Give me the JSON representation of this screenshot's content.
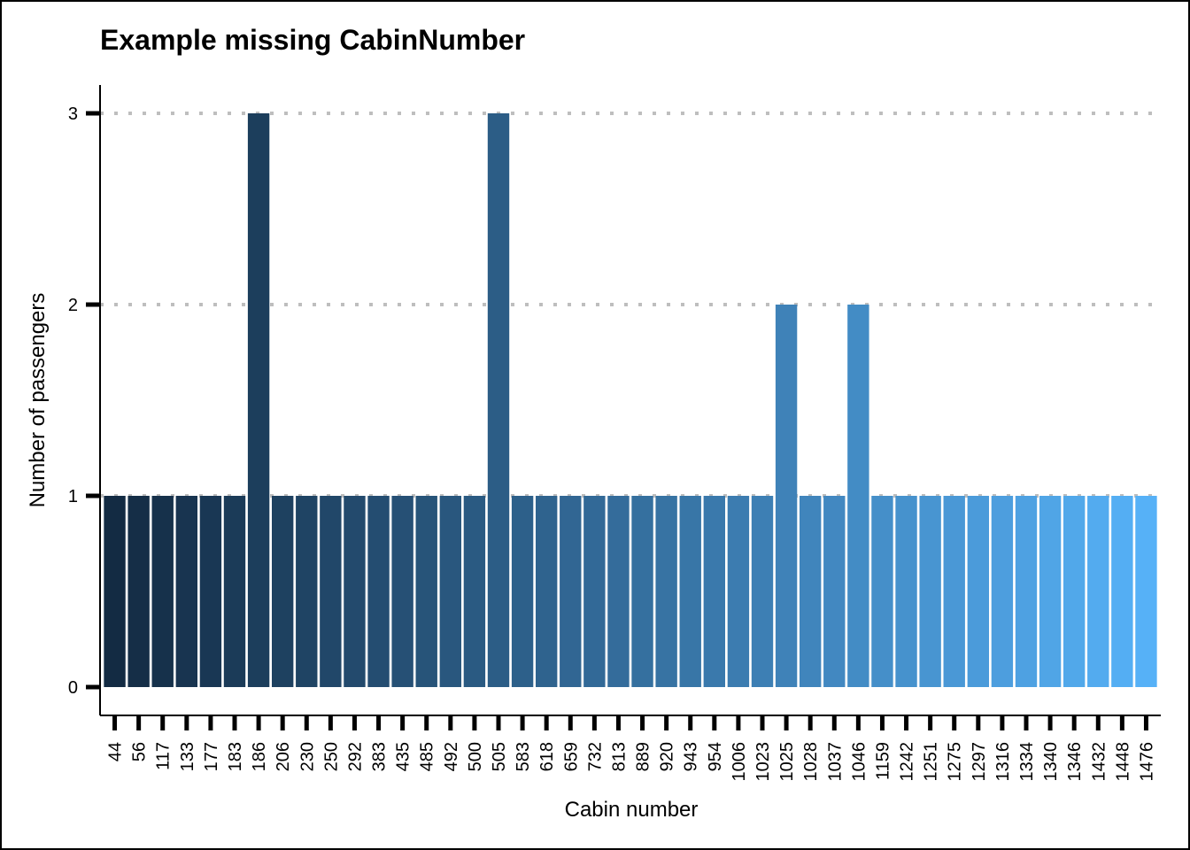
{
  "chart_data": {
    "type": "bar",
    "title": "Example missing CabinNumber",
    "xlabel": "Cabin number",
    "ylabel": "Number of passengers",
    "ylim": [
      0,
      3.15
    ],
    "yticks": [
      0,
      1,
      2,
      3
    ],
    "grid": "horizontal dotted",
    "legend": "none",
    "categories": [
      "44",
      "56",
      "117",
      "133",
      "177",
      "183",
      "186",
      "206",
      "230",
      "250",
      "292",
      "383",
      "435",
      "485",
      "492",
      "500",
      "505",
      "583",
      "618",
      "659",
      "732",
      "813",
      "889",
      "920",
      "943",
      "954",
      "1006",
      "1023",
      "1025",
      "1028",
      "1037",
      "1046",
      "1159",
      "1242",
      "1251",
      "1275",
      "1297",
      "1316",
      "1334",
      "1340",
      "1346",
      "1432",
      "1448",
      "1476"
    ],
    "values": [
      1,
      1,
      1,
      1,
      1,
      1,
      3,
      1,
      1,
      1,
      1,
      1,
      1,
      1,
      1,
      1,
      3,
      1,
      1,
      1,
      1,
      1,
      1,
      1,
      1,
      1,
      1,
      1,
      2,
      1,
      1,
      2,
      1,
      1,
      1,
      1,
      1,
      1,
      1,
      1,
      1,
      1,
      1,
      1
    ],
    "color_start": "#132b43",
    "color_end": "#56b1f7",
    "grid_color": "#bebebe"
  }
}
